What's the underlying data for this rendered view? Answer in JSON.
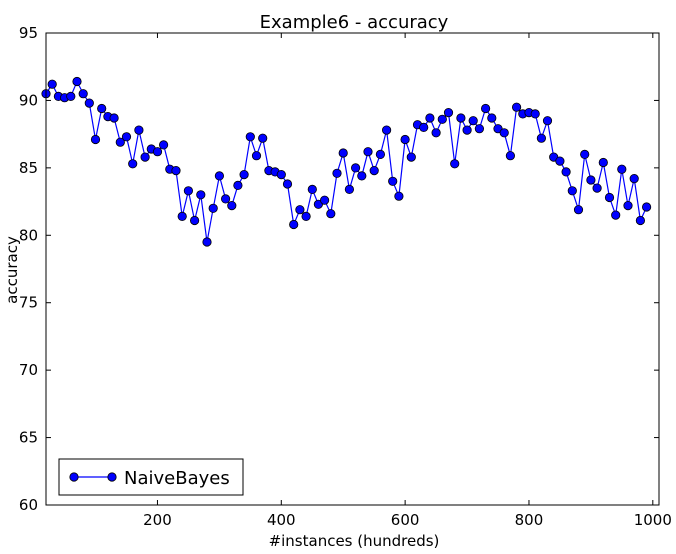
{
  "chart_data": {
    "type": "line",
    "title": "Example6 - accuracy",
    "xlabel": "#instances (hundreds)",
    "ylabel": "accuracy",
    "xlim": [
      20,
      1010
    ],
    "ylim": [
      60,
      95
    ],
    "xticks": [
      200,
      400,
      600,
      800,
      1000
    ],
    "xtick_labels": [
      "200",
      "400",
      "600",
      "800",
      "1000"
    ],
    "yticks": [
      60,
      65,
      70,
      75,
      80,
      85,
      90,
      95
    ],
    "ytick_labels": [
      "60",
      "65",
      "70",
      "75",
      "80",
      "85",
      "90",
      "95"
    ],
    "grid": false,
    "legend_position": "lower-left",
    "series": [
      {
        "name": "NaiveBayes",
        "color": "#0000ff",
        "x": [
          20,
          30,
          40,
          50,
          60,
          70,
          80,
          90,
          100,
          110,
          120,
          130,
          140,
          150,
          160,
          170,
          180,
          190,
          200,
          210,
          220,
          230,
          240,
          250,
          260,
          270,
          280,
          290,
          300,
          310,
          320,
          330,
          340,
          350,
          360,
          370,
          380,
          390,
          400,
          410,
          420,
          430,
          440,
          450,
          460,
          470,
          480,
          490,
          500,
          510,
          520,
          530,
          540,
          550,
          560,
          570,
          580,
          590,
          600,
          610,
          620,
          630,
          640,
          650,
          660,
          670,
          680,
          690,
          700,
          710,
          720,
          730,
          740,
          750,
          760,
          770,
          780,
          790,
          800,
          810,
          820,
          830,
          840,
          850,
          860,
          870,
          880,
          890,
          900,
          910,
          920,
          930,
          940,
          950,
          960,
          970,
          980,
          990,
          1000
        ],
        "values": [
          90.5,
          91.2,
          90.3,
          90.2,
          90.3,
          91.4,
          90.5,
          89.8,
          87.1,
          89.4,
          88.8,
          88.7,
          86.9,
          87.3,
          85.3,
          87.8,
          85.8,
          86.4,
          86.2,
          86.7,
          84.9,
          84.8,
          81.4,
          83.3,
          81.1,
          83.0,
          79.5,
          82.0,
          84.4,
          82.7,
          82.2,
          83.7,
          84.5,
          87.3,
          85.9,
          87.2,
          84.8,
          84.7,
          84.5,
          83.8,
          80.8,
          81.9,
          81.4,
          83.4,
          82.3,
          82.6,
          81.6,
          84.6,
          86.1,
          83.4,
          85.0,
          84.4,
          86.2,
          84.8,
          86.0,
          87.8,
          84.0,
          82.9,
          87.1,
          85.8,
          88.2,
          88.0,
          88.7,
          87.6,
          88.6,
          89.1,
          85.3,
          88.7,
          87.8,
          88.5,
          87.9,
          89.4,
          88.7,
          87.9,
          87.6,
          85.9,
          89.5,
          89.0,
          89.1,
          89.0,
          87.2,
          88.5,
          85.8,
          85.5,
          84.7,
          83.3,
          81.9,
          86.0,
          84.1,
          83.5,
          85.4,
          82.8,
          81.5,
          84.9,
          82.2,
          84.2,
          81.1,
          82.1,
          null
        ]
      }
    ]
  }
}
